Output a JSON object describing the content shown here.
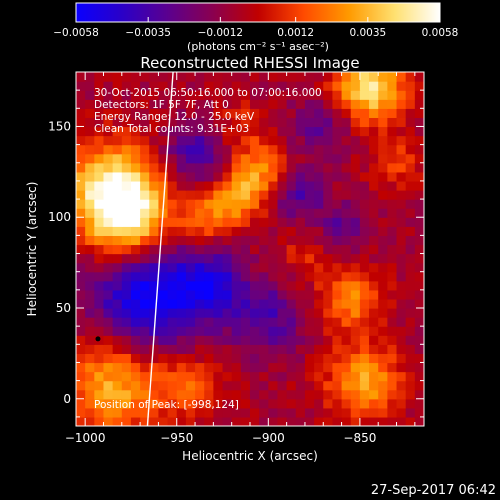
{
  "colorbar": {
    "tick_labels": [
      "−0.0058",
      "−0.0035",
      "−0.0012",
      "0.0012",
      "0.0035",
      "0.0058"
    ],
    "tick_values": [
      -0.0058,
      -0.0035,
      -0.0012,
      0.0012,
      0.0035,
      0.0058
    ],
    "range": [
      -0.0058,
      0.0058
    ],
    "unit_label": "(photons cm⁻² s⁻¹ asec⁻²)",
    "colormap": [
      "#0a00ff",
      "#2a00c8",
      "#5a0090",
      "#8a0050",
      "#c00000",
      "#ff4a00",
      "#ff9a00",
      "#ffe070",
      "#ffffff"
    ]
  },
  "chart_data": {
    "type": "heatmap",
    "title": "Reconstructed RHESSI Image",
    "xlabel": "Heliocentric X (arcsec)",
    "ylabel": "Heliocentric Y (arcsec)",
    "xlim": [
      -1005,
      -815
    ],
    "ylim": [
      -15,
      180
    ],
    "x_ticks": [
      -1000,
      -950,
      -900,
      -850
    ],
    "x_tick_labels": [
      "−1000",
      "−950",
      "−900",
      "−850"
    ],
    "y_ticks": [
      0,
      50,
      100,
      150
    ],
    "y_tick_labels": [
      "0",
      "50",
      "100",
      "150"
    ],
    "annotations": [
      "30-Oct-2015 06:50:16.000 to 07:00:16.000",
      "Detectors: 1F 5F 7F, Att 0",
      "Energy Range: 12.0 - 25.0 keV",
      "Clean    Total counts: 9.31E+03"
    ],
    "peak_label": "Position of Peak:  [-998,124]",
    "peak_position": [
      -998,
      124
    ],
    "sources": [
      {
        "x": -985,
        "y": 115,
        "amp": 1.0,
        "sigma": 18
      },
      {
        "x": -975,
        "y": 95,
        "amp": 0.8,
        "sigma": 16
      },
      {
        "x": -845,
        "y": 172,
        "amp": 0.9,
        "sigma": 14
      },
      {
        "x": -917,
        "y": 110,
        "amp": 0.55,
        "sigma": 10
      },
      {
        "x": -905,
        "y": 125,
        "amp": 0.55,
        "sigma": 11
      },
      {
        "x": -935,
        "y": 100,
        "amp": 0.45,
        "sigma": 10
      },
      {
        "x": -855,
        "y": 55,
        "amp": 0.55,
        "sigma": 12
      },
      {
        "x": -848,
        "y": 10,
        "amp": 0.65,
        "sigma": 14
      },
      {
        "x": -985,
        "y": 8,
        "amp": 0.7,
        "sigma": 18
      },
      {
        "x": -945,
        "y": 8,
        "amp": 0.45,
        "sigma": 12
      },
      {
        "x": -830,
        "y": 130,
        "amp": 0.3,
        "sigma": 10
      },
      {
        "x": -880,
        "y": 80,
        "amp": 0.25,
        "sigma": 10
      },
      {
        "x": -915,
        "y": 150,
        "amp": 0.25,
        "sigma": 10
      },
      {
        "x": -965,
        "y": 60,
        "amp": -0.9,
        "sigma": 22
      },
      {
        "x": -930,
        "y": 62,
        "amp": -0.6,
        "sigma": 12
      },
      {
        "x": -940,
        "y": 135,
        "amp": -0.5,
        "sigma": 12
      },
      {
        "x": -885,
        "y": 112,
        "amp": -0.45,
        "sigma": 10
      },
      {
        "x": -900,
        "y": 45,
        "amp": -0.45,
        "sigma": 14
      },
      {
        "x": -870,
        "y": 150,
        "amp": -0.35,
        "sigma": 12
      },
      {
        "x": -860,
        "y": 95,
        "amp": -0.35,
        "sigma": 10
      }
    ],
    "limb_line": [
      [
        -966,
        -15
      ],
      [
        -952,
        180
      ]
    ]
  },
  "footer": {
    "timestamp": "27-Sep-2017 06:42"
  }
}
